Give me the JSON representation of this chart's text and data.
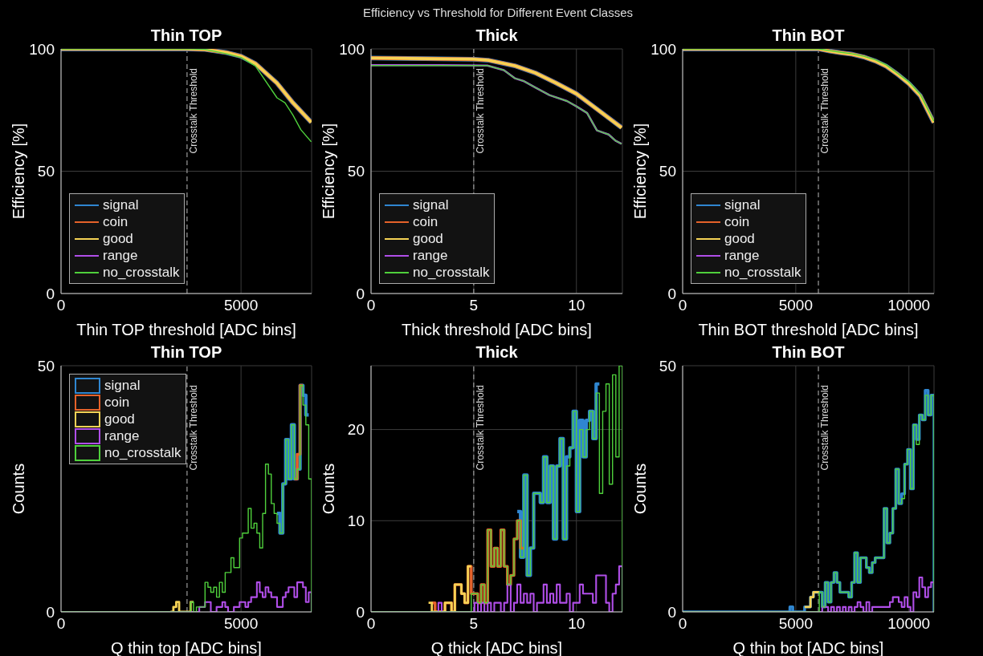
{
  "chart_data": [
    {
      "type": "line",
      "title": "Thin TOP",
      "xlabel": "Thin TOP threshold [ADC bins]",
      "ylabel": "Efficiency [%]",
      "annotations": [
        "Efficiency vs Threshold for Different Event Classes"
      ],
      "xlim": [
        0,
        6960
      ],
      "xticks": [
        0,
        5000
      ],
      "ylim": [
        0,
        100
      ],
      "yticks": [
        0,
        50,
        100
      ],
      "grid": true,
      "legend": "bottom left",
      "ref_lines": [
        {
          "axis": "x",
          "value": 3500,
          "label": "Crosstalk Threshold",
          "color": "#9a9a9a",
          "line_style": "dashed"
        }
      ],
      "series": [
        {
          "name": "signal",
          "color": "#2f86d0",
          "x": [
            0,
            3500,
            4000,
            4600,
            5000,
            5400,
            6000,
            6440,
            6950
          ],
          "values": [
            100,
            100,
            99.8,
            98.5,
            97,
            94,
            86,
            78,
            70
          ]
        },
        {
          "name": "coin",
          "color": "#e5622a",
          "x": [
            0,
            3500,
            4000,
            4600,
            5000,
            5400,
            6000,
            6440,
            6950
          ],
          "values": [
            100,
            100,
            99.8,
            98.5,
            97,
            94,
            86,
            78,
            70
          ]
        },
        {
          "name": "good",
          "color": "#f5d255",
          "x": [
            0,
            3500,
            4000,
            4600,
            5000,
            5400,
            6000,
            6440,
            6950
          ],
          "values": [
            100,
            100,
            99.8,
            98.5,
            97,
            94,
            86,
            78,
            70
          ]
        },
        {
          "name": "range",
          "color": "#b04ee8"
        },
        {
          "name": "no_crosstalk",
          "color": "#4fd03c",
          "x": [
            0,
            3600,
            4000,
            4600,
            5000,
            5400,
            6000,
            6220,
            6440,
            6660,
            6950
          ],
          "values": [
            100,
            100,
            99.8,
            98,
            96.5,
            93,
            80,
            78,
            73,
            67,
            62
          ]
        }
      ]
    },
    {
      "type": "line",
      "title": "Thick",
      "xlabel": "Thick threshold [ADC bins]",
      "ylabel": "Efficiency [%]",
      "xlim": [
        0,
        12.24
      ],
      "xticks": [
        0,
        5,
        10
      ],
      "ylim": [
        0,
        100
      ],
      "yticks": [
        0,
        50,
        100
      ],
      "grid": true,
      "legend": "bottom left",
      "ref_lines": [
        {
          "axis": "x",
          "value": 5,
          "label": "Crosstalk Threshold",
          "color": "#9a9a9a",
          "line_style": "dashed"
        }
      ],
      "series": [
        {
          "name": "signal",
          "color": "#2f86d0",
          "x": [
            0,
            5,
            5.7,
            7,
            8,
            9,
            10,
            11,
            12.2
          ],
          "values": [
            96.3,
            95.8,
            95.4,
            93.1,
            90.2,
            86.1,
            81.7,
            75.4,
            67.8
          ]
        },
        {
          "name": "coin",
          "color": "#e5622a",
          "x": [
            0,
            5,
            5.7,
            7,
            8,
            9,
            10,
            11,
            12.2
          ],
          "values": [
            96.3,
            95.8,
            95.4,
            93.1,
            90.2,
            86.1,
            81.7,
            75.4,
            67.8
          ]
        },
        {
          "name": "good",
          "color": "#f5d255",
          "x": [
            0,
            5,
            5.7,
            7,
            8,
            9,
            10,
            11,
            12.2
          ],
          "values": [
            96.3,
            95.8,
            95.4,
            93.1,
            90.2,
            86.1,
            81.7,
            75.4,
            67.8
          ]
        },
        {
          "name": "range",
          "color": "#b04ee8",
          "x": [
            0,
            3.4,
            5.66,
            6.47,
            7,
            7.42,
            8,
            8.69,
            9.54,
            10,
            10.52,
            11,
            11.57,
            11.9,
            12.2
          ],
          "values": [
            93.4,
            93.4,
            93.2,
            91.3,
            88,
            86.9,
            84.2,
            81.1,
            78.7,
            76.5,
            73.8,
            66.7,
            65,
            62.5,
            61.2
          ]
        },
        {
          "name": "no_crosstalk",
          "color": "#4fd03c",
          "x": [
            0,
            5.66,
            6.47,
            7,
            7.42,
            8,
            8.69,
            9.54,
            10,
            10.52,
            11,
            11.57,
            11.9,
            12.2
          ],
          "values": [
            93.2,
            93.2,
            91.3,
            88,
            86.9,
            84.2,
            81.1,
            78.7,
            76.5,
            73.8,
            66.7,
            65,
            62.5,
            61.2
          ]
        }
      ]
    },
    {
      "type": "line",
      "title": "Thin BOT",
      "xlabel": "Thin BOT threshold [ADC bins]",
      "ylabel": "Efficiency [%]",
      "xlim": [
        0,
        11110
      ],
      "xticks": [
        0,
        5000,
        10000
      ],
      "ylim": [
        0,
        100
      ],
      "yticks": [
        0,
        50,
        100
      ],
      "grid": true,
      "legend": "bottom left",
      "ref_lines": [
        {
          "axis": "x",
          "value": 6000,
          "label": "Crosstalk Threshold",
          "color": "#9a9a9a",
          "line_style": "dashed"
        }
      ],
      "series": [
        {
          "name": "signal",
          "color": "#2f86d0",
          "x": [
            0,
            6000,
            6500,
            7000,
            7500,
            8000,
            8500,
            9000,
            9500,
            10000,
            10500,
            11100
          ],
          "values": [
            100,
            100,
            99.1,
            98.4,
            97.8,
            96.7,
            95.1,
            92.9,
            89.6,
            85.8,
            80.9,
            69.9
          ]
        },
        {
          "name": "coin",
          "color": "#e5622a",
          "x": [
            0,
            6000,
            6500,
            7000,
            7500,
            8000,
            8500,
            9000,
            9500,
            10000,
            10500,
            11100
          ],
          "values": [
            100,
            100,
            99.1,
            98.4,
            97.8,
            96.7,
            95.1,
            92.9,
            89.6,
            85.8,
            80.9,
            69.9
          ]
        },
        {
          "name": "good",
          "color": "#f5d255",
          "x": [
            0,
            6000,
            6500,
            7000,
            7500,
            8000,
            8500,
            9000,
            9500,
            10000,
            10500,
            11100
          ],
          "values": [
            100,
            100,
            99.1,
            98.4,
            97.8,
            96.7,
            95.1,
            92.9,
            89.6,
            85.8,
            80.9,
            69.9
          ]
        },
        {
          "name": "range",
          "color": "#b04ee8"
        },
        {
          "name": "no_crosstalk",
          "color": "#4fd03c",
          "x": [
            0,
            6000,
            6500,
            7000,
            7500,
            8000,
            8500,
            9000,
            9500,
            10000,
            10500,
            11100
          ],
          "values": [
            100,
            100,
            99.3,
            98.6,
            98,
            97,
            95.6,
            93.5,
            90,
            86.5,
            81.5,
            70.5
          ]
        }
      ]
    },
    {
      "type": "histogram",
      "title": "Thin TOP",
      "xlabel": "Q thin top [ADC bins]",
      "ylabel": "Counts",
      "xlim": [
        0,
        6960
      ],
      "xticks": [
        0,
        5000
      ],
      "ylim": [
        0,
        50
      ],
      "yticks": [
        0,
        50
      ],
      "grid": true,
      "legend": "top left",
      "ref_lines": [
        {
          "axis": "x",
          "value": 3500,
          "label": "Crosstalk Threshold",
          "color": "#9a9a9a",
          "line_style": "dashed"
        }
      ],
      "bins": [
        0,
        3040,
        3120,
        3200,
        3280,
        3360,
        3440,
        3520,
        3600,
        3680,
        3760,
        3840,
        3920,
        4000,
        4080,
        4160,
        4240,
        4320,
        4400,
        4480,
        4560,
        4640,
        4720,
        4800,
        4880,
        4960,
        5040,
        5120,
        5200,
        5280,
        5360,
        5440,
        5520,
        5600,
        5680,
        5760,
        5840,
        5920,
        6000,
        6080,
        6160,
        6240,
        6320,
        6400,
        6480,
        6560,
        6640,
        6720,
        6800,
        6880,
        6960
      ],
      "series": [
        {
          "name": "signal",
          "color": "#2f86d0",
          "bins": [
            6000,
            6080,
            6160,
            6240,
            6320,
            6400,
            6480,
            6560,
            6640,
            6720,
            6800,
            6880
          ],
          "values": [
            20,
            16,
            26,
            35,
            27,
            38,
            27,
            29,
            46,
            44,
            40
          ]
        },
        {
          "name": "coin",
          "color": "#e5622a",
          "bins": [
            6480,
            6560,
            6640,
            6720
          ],
          "values": [
            27,
            32,
            46
          ]
        },
        {
          "name": "good",
          "color": "#f5d255",
          "bins": [
            3040,
            3120,
            3200,
            3280,
            3360,
            3440,
            3520,
            3600,
            3680
          ],
          "values": [
            0,
            1,
            2,
            0,
            0,
            0,
            0,
            2
          ]
        },
        {
          "name": "range",
          "color": "#b04ee8",
          "values": [
            0,
            0,
            0,
            0,
            0,
            0,
            0,
            0,
            0,
            0,
            0,
            1,
            1,
            2,
            2,
            0,
            0,
            1,
            1,
            2,
            1,
            0,
            0,
            1,
            1,
            2,
            2,
            1,
            2,
            3,
            3,
            6,
            4,
            3,
            5,
            4,
            3,
            3,
            1,
            1,
            3,
            4,
            5,
            5,
            3,
            6,
            6,
            5,
            2,
            4
          ]
        },
        {
          "name": "no_crosstalk",
          "color": "#4fd03c",
          "values": [
            0,
            0,
            0,
            0,
            0,
            0,
            0,
            0,
            2,
            0,
            1,
            1,
            1,
            6,
            5,
            4,
            5,
            3,
            6,
            4,
            8,
            8,
            11,
            9,
            9,
            15,
            16,
            16,
            21,
            17,
            18,
            16,
            13,
            20,
            30,
            28,
            22,
            20,
            18,
            16,
            26,
            35,
            27,
            38,
            27,
            29,
            46,
            42,
            38,
            27
          ]
        }
      ]
    },
    {
      "type": "histogram",
      "title": "Thick",
      "xlabel": "Q thick [ADC bins]",
      "ylabel": "Counts",
      "xlim": [
        0,
        12.24
      ],
      "xticks": [
        0,
        5,
        10
      ],
      "ylim": [
        0,
        27
      ],
      "yticks": [
        0,
        10,
        20
      ],
      "grid": true,
      "ref_lines": [
        {
          "axis": "x",
          "value": 5,
          "label": "Crosstalk Threshold",
          "color": "#9a9a9a",
          "line_style": "dashed"
        }
      ],
      "bins": [
        0,
        2.8,
        2.96,
        3.12,
        3.28,
        3.44,
        3.6,
        3.76,
        3.92,
        4.08,
        4.24,
        4.4,
        4.56,
        4.72,
        4.88,
        5.04,
        5.2,
        5.36,
        5.52,
        5.68,
        5.84,
        6,
        6.16,
        6.32,
        6.48,
        6.64,
        6.8,
        6.96,
        7.12,
        7.28,
        7.44,
        7.6,
        7.76,
        7.92,
        8.08,
        8.24,
        8.4,
        8.56,
        8.72,
        8.88,
        9.04,
        9.2,
        9.36,
        9.52,
        9.68,
        9.84,
        10,
        10.16,
        10.32,
        10.48,
        10.64,
        10.8,
        10.96,
        11.12,
        11.28,
        11.44,
        11.6,
        11.76,
        11.92,
        12.08,
        12.24
      ],
      "series": [
        {
          "color": "#2f86d0",
          "bins": [
            7.12,
            7.28,
            7.44,
            7.6,
            7.76,
            7.92,
            8.08,
            8.24,
            8.4,
            8.56,
            8.72,
            8.88,
            9.04,
            9.2,
            9.36,
            9.52,
            9.68,
            9.84,
            10,
            10.16,
            10.32,
            10.48,
            10.64,
            10.8,
            10.96,
            11.12
          ],
          "values": [
            11,
            6,
            15,
            4,
            7,
            13,
            13,
            12,
            17,
            12,
            16,
            8,
            16,
            19,
            8,
            17,
            18,
            22,
            11,
            21,
            17,
            21,
            22,
            19,
            25
          ]
        },
        {
          "color": "#e5622a",
          "bins": [
            2.96,
            3.12,
            3.28,
            3.44,
            3.6,
            3.76,
            3.92,
            4.08,
            4.24,
            4.4,
            4.56,
            4.72,
            4.88,
            5.04,
            5.2,
            5.36,
            5.52,
            5.68,
            5.84,
            6,
            6.16,
            6.32,
            6.48,
            6.64,
            6.8,
            6.96,
            7.12,
            7.28,
            7.44
          ],
          "values": [
            1,
            0,
            0,
            0,
            1,
            1,
            0,
            3,
            3,
            2,
            1,
            5,
            2,
            2,
            1,
            3,
            1,
            9,
            5,
            7,
            5,
            9,
            5,
            3,
            4,
            8,
            10,
            7
          ]
        },
        {
          "color": "#f5d255",
          "bins": [
            2.8,
            2.96,
            3.12,
            3.28,
            3.44,
            3.6,
            3.76,
            3.92,
            4.08,
            4.24,
            4.4,
            4.56,
            4.72,
            4.88
          ],
          "values": [
            1,
            0,
            0,
            0,
            0,
            1,
            1,
            0,
            3,
            3,
            2,
            1,
            5
          ]
        },
        {
          "color": "#b04ee8",
          "values": [
            0,
            0,
            0,
            0,
            1,
            0,
            0,
            0,
            0,
            0,
            0,
            0,
            0,
            0,
            0,
            1,
            0,
            1,
            0,
            1,
            0,
            1,
            1,
            0,
            1,
            3,
            0,
            1,
            3,
            1,
            2,
            1,
            2,
            0,
            1,
            1,
            3,
            1,
            2,
            1,
            3,
            1,
            1,
            2,
            0,
            1,
            1,
            3,
            2,
            2,
            2,
            1,
            4,
            4,
            4,
            1,
            0,
            2,
            3,
            5
          ]
        },
        {
          "color": "#4fd03c",
          "values": [
            0,
            0,
            0,
            0,
            0,
            0,
            0,
            0,
            0,
            0,
            0,
            0,
            0,
            0,
            2,
            2,
            1,
            3,
            1,
            9,
            5,
            7,
            5,
            9,
            5,
            3,
            4,
            8,
            10,
            6,
            15,
            4,
            7,
            13,
            13,
            12,
            17,
            12,
            16,
            8,
            16,
            19,
            8,
            16,
            18,
            22,
            11,
            20,
            17,
            20,
            22,
            19,
            24,
            13,
            22,
            25,
            14,
            26,
            17,
            27
          ]
        }
      ]
    },
    {
      "type": "histogram",
      "title": "Thin BOT",
      "xlabel": "Q thin bot [ADC bins]",
      "ylabel": "Counts",
      "xlim": [
        0,
        11110
      ],
      "xticks": [
        0,
        5000,
        10000
      ],
      "ylim": [
        0,
        50
      ],
      "yticks": [
        0,
        50
      ],
      "grid": true,
      "ref_lines": [
        {
          "axis": "x",
          "value": 6000,
          "label": "Crosstalk Threshold",
          "color": "#9a9a9a",
          "line_style": "dashed"
        }
      ],
      "bins": [
        0,
        4740,
        4870,
        5000,
        5130,
        5260,
        5390,
        5520,
        5650,
        5780,
        5910,
        6040,
        6170,
        6300,
        6430,
        6560,
        6690,
        6820,
        6950,
        7080,
        7210,
        7340,
        7470,
        7600,
        7730,
        7860,
        7990,
        8120,
        8250,
        8380,
        8510,
        8640,
        8770,
        8900,
        9030,
        9160,
        9290,
        9420,
        9550,
        9680,
        9810,
        9940,
        10070,
        10200,
        10330,
        10460,
        10590,
        10720,
        10850,
        10980,
        11110
      ],
      "series": [
        {
          "color": "#2f86d0",
          "values": [
            0,
            1,
            0,
            0,
            0,
            0,
            1,
            1,
            3,
            4,
            4,
            4,
            1,
            6,
            2,
            6,
            8,
            6,
            4,
            4,
            4,
            3,
            6,
            12,
            6,
            11,
            11,
            9,
            8,
            10,
            11,
            11,
            11,
            21,
            14,
            16,
            21,
            29,
            22,
            24,
            30,
            33,
            25,
            38,
            35,
            40,
            39,
            45,
            40,
            44
          ]
        },
        {
          "color": "#f5d255",
          "bins": [
            5390,
            5520,
            5650,
            5780,
            5910,
            6040
          ],
          "values": [
            1,
            1,
            3,
            4,
            4
          ]
        },
        {
          "color": "#b04ee8",
          "values": [
            0,
            0,
            0,
            0,
            0,
            0,
            0,
            0,
            0,
            0,
            0,
            0,
            1,
            1,
            0,
            1,
            0,
            1,
            0,
            1,
            0,
            1,
            0,
            1,
            2,
            1,
            0,
            2,
            0,
            1,
            1,
            1,
            1,
            1,
            1,
            2,
            3,
            3,
            2,
            1,
            3,
            1,
            0,
            4,
            3,
            7,
            5,
            3,
            5,
            6
          ]
        },
        {
          "color": "#4fd03c",
          "values": [
            0,
            0,
            0,
            0,
            0,
            0,
            0,
            0,
            0,
            0,
            0,
            4,
            1,
            6,
            2,
            6,
            8,
            6,
            4,
            4,
            4,
            3,
            6,
            12,
            6,
            11,
            11,
            9,
            8,
            10,
            11,
            11,
            11,
            21,
            14,
            16,
            21,
            29,
            22,
            23,
            30,
            33,
            25,
            38,
            34,
            40,
            39,
            44,
            40,
            44
          ]
        }
      ]
    }
  ]
}
